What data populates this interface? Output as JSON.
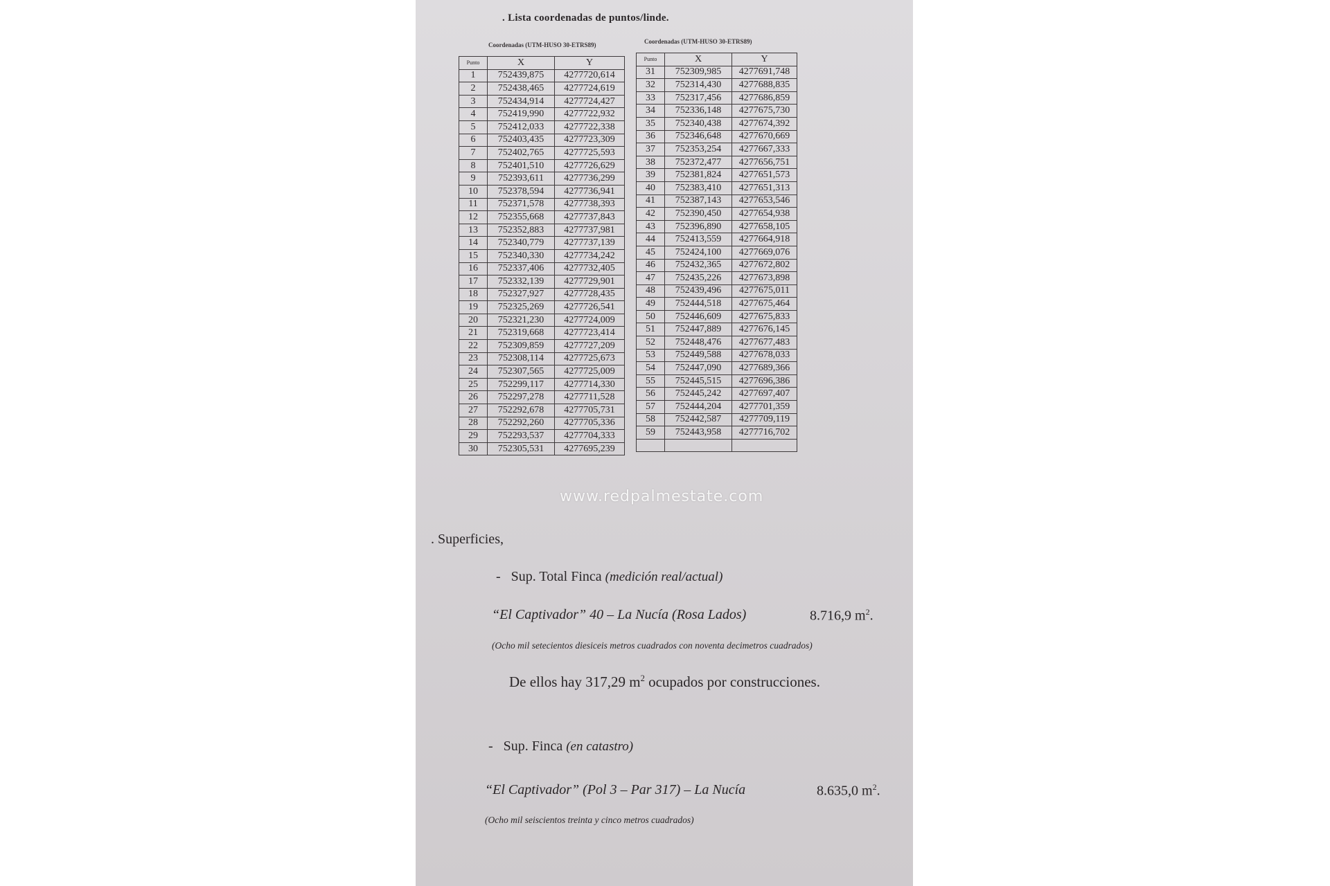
{
  "title": ". Lista coordenadas de puntos/linde.",
  "tables": {
    "left": {
      "caption": "Coordenadas (UTM-HUSO 30-ETRS89)",
      "headers": [
        "Punto",
        "X",
        "Y"
      ],
      "rows": [
        [
          "1",
          "752439,875",
          "4277720,614"
        ],
        [
          "2",
          "752438,465",
          "4277724,619"
        ],
        [
          "3",
          "752434,914",
          "4277724,427"
        ],
        [
          "4",
          "752419,990",
          "4277722,932"
        ],
        [
          "5",
          "752412,033",
          "4277722,338"
        ],
        [
          "6",
          "752403,435",
          "4277723,309"
        ],
        [
          "7",
          "752402,765",
          "4277725,593"
        ],
        [
          "8",
          "752401,510",
          "4277726,629"
        ],
        [
          "9",
          "752393,611",
          "4277736,299"
        ],
        [
          "10",
          "752378,594",
          "4277736,941"
        ],
        [
          "11",
          "752371,578",
          "4277738,393"
        ],
        [
          "12",
          "752355,668",
          "4277737,843"
        ],
        [
          "13",
          "752352,883",
          "4277737,981"
        ],
        [
          "14",
          "752340,779",
          "4277737,139"
        ],
        [
          "15",
          "752340,330",
          "4277734,242"
        ],
        [
          "16",
          "752337,406",
          "4277732,405"
        ],
        [
          "17",
          "752332,139",
          "4277729,901"
        ],
        [
          "18",
          "752327,927",
          "4277728,435"
        ],
        [
          "19",
          "752325,269",
          "4277726,541"
        ],
        [
          "20",
          "752321,230",
          "4277724,009"
        ],
        [
          "21",
          "752319,668",
          "4277723,414"
        ],
        [
          "22",
          "752309,859",
          "4277727,209"
        ],
        [
          "23",
          "752308,114",
          "4277725,673"
        ],
        [
          "24",
          "752307,565",
          "4277725,009"
        ],
        [
          "25",
          "752299,117",
          "4277714,330"
        ],
        [
          "26",
          "752297,278",
          "4277711,528"
        ],
        [
          "27",
          "752292,678",
          "4277705,731"
        ],
        [
          "28",
          "752292,260",
          "4277705,336"
        ],
        [
          "29",
          "752293,537",
          "4277704,333"
        ],
        [
          "30",
          "752305,531",
          "4277695,239"
        ]
      ]
    },
    "right": {
      "caption": "Coordenadas (UTM-HUSO 30-ETRS89)",
      "headers": [
        "Punto",
        "X",
        "Y"
      ],
      "rows": [
        [
          "31",
          "752309,985",
          "4277691,748"
        ],
        [
          "32",
          "752314,430",
          "4277688,835"
        ],
        [
          "33",
          "752317,456",
          "4277686,859"
        ],
        [
          "34",
          "752336,148",
          "4277675,730"
        ],
        [
          "35",
          "752340,438",
          "4277674,392"
        ],
        [
          "36",
          "752346,648",
          "4277670,669"
        ],
        [
          "37",
          "752353,254",
          "4277667,333"
        ],
        [
          "38",
          "752372,477",
          "4277656,751"
        ],
        [
          "39",
          "752381,824",
          "4277651,573"
        ],
        [
          "40",
          "752383,410",
          "4277651,313"
        ],
        [
          "41",
          "752387,143",
          "4277653,546"
        ],
        [
          "42",
          "752390,450",
          "4277654,938"
        ],
        [
          "43",
          "752396,890",
          "4277658,105"
        ],
        [
          "44",
          "752413,559",
          "4277664,918"
        ],
        [
          "45",
          "752424,100",
          "4277669,076"
        ],
        [
          "46",
          "752432,365",
          "4277672,802"
        ],
        [
          "47",
          "752435,226",
          "4277673,898"
        ],
        [
          "48",
          "752439,496",
          "4277675,011"
        ],
        [
          "49",
          "752444,518",
          "4277675,464"
        ],
        [
          "50",
          "752446,609",
          "4277675,833"
        ],
        [
          "51",
          "752447,889",
          "4277676,145"
        ],
        [
          "52",
          "752448,476",
          "4277677,483"
        ],
        [
          "53",
          "752449,588",
          "4277678,033"
        ],
        [
          "54",
          "752447,090",
          "4277689,366"
        ],
        [
          "55",
          "752445,515",
          "4277696,386"
        ],
        [
          "56",
          "752445,242",
          "4277697,407"
        ],
        [
          "57",
          "752444,204",
          "4277701,359"
        ],
        [
          "58",
          "752442,587",
          "4277709,119"
        ],
        [
          "59",
          "752443,958",
          "4277716,702"
        ],
        [
          "",
          "",
          ""
        ]
      ]
    }
  },
  "surfaces": {
    "heading": ". Superficies,",
    "total": {
      "label": "-   Sup. Total Finca",
      "note": "(medición real/actual)",
      "place": "“El Captivador” 40 – La Nucía  (Rosa Lados)",
      "value": "8.716,9 m",
      "value_sup": "2",
      "value_end": ".",
      "words": "(Ocho mil setecientos diesiceis metros cuadrados con noventa decimetros cuadrados)",
      "built_prefix": "De ellos hay 317,29 m",
      "built_sup": "2",
      "built_suffix": " ocupados por construcciones."
    },
    "catastro": {
      "label": "-   Sup. Finca",
      "note": "(en catastro)",
      "place": "“El Captivador” (Pol 3 – Par 317) – La Nucía",
      "value": "8.635,0 m",
      "value_sup": "2",
      "value_end": ".",
      "words": "(Ocho mil seiscientos treinta y cinco metros cuadrados)"
    }
  },
  "watermark": "www.redpalmestate.com"
}
